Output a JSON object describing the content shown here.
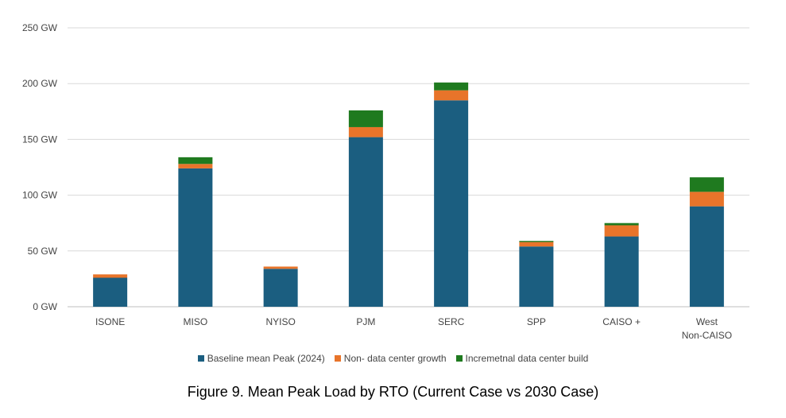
{
  "chart_data": {
    "type": "bar",
    "stacked": true,
    "categories": [
      "ISONE",
      "MISO",
      "NYISO",
      "PJM",
      "SERC",
      "SPP",
      "CAISO +",
      "West\nNon-CAISO"
    ],
    "series": [
      {
        "name": "Baseline mean Peak (2024)",
        "color": "#1b5e80",
        "values": [
          26,
          124,
          34,
          152,
          185,
          54,
          63,
          90
        ]
      },
      {
        "name": "Non- data center growth",
        "color": "#e8742a",
        "values": [
          3,
          4,
          2,
          9,
          9,
          4,
          10,
          13
        ]
      },
      {
        "name": "Incremetnal data center build",
        "color": "#1f7a1f",
        "values": [
          0,
          6,
          0,
          15,
          7,
          1,
          2,
          13
        ]
      }
    ],
    "ylim": [
      0,
      250
    ],
    "yticks": [
      0,
      50,
      100,
      150,
      200,
      250
    ],
    "ytick_labels": [
      "0 GW",
      "50 GW",
      "100 GW",
      "150 GW",
      "200 GW",
      "250 GW"
    ],
    "grid": true,
    "legend_position": "bottom",
    "title": "Figure 9. Mean Peak Load by RTO (Current Case vs 2030 Case)"
  }
}
